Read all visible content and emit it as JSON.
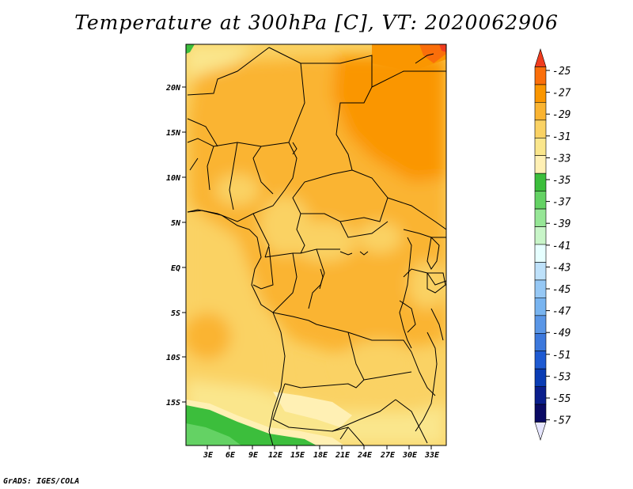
{
  "title": "Temperature at 300hPa [C], VT: 2020062906",
  "credit": "GrADS: IGES/COLA",
  "map": {
    "lat_labels": [
      "20N",
      "15N",
      "10N",
      "5N",
      "EQ",
      "5S",
      "10S",
      "15S"
    ],
    "lon_labels": [
      "3E",
      "6E",
      "9E",
      "12E",
      "15E",
      "18E",
      "21E",
      "24E",
      "27E",
      "30E",
      "33E"
    ],
    "field": "Temperature",
    "level": "300hPa",
    "units": "C"
  },
  "colorbar": {
    "labels": [
      "-25",
      "-27",
      "-29",
      "-31",
      "-33",
      "-35",
      "-37",
      "-39",
      "-41",
      "-43",
      "-45",
      "-47",
      "-49",
      "-51",
      "-53",
      "-55",
      "-57"
    ],
    "colors": [
      "#f03c1e",
      "#fa6e0a",
      "#fa9600",
      "#fab432",
      "#fad264",
      "#fae68c",
      "#fff0b4",
      "#3cbe3c",
      "#64d264",
      "#96e696",
      "#c8f5c8",
      "#e6ffff",
      "#bee1fa",
      "#96c8f5",
      "#78b4f0",
      "#5a96e6",
      "#3c78dc",
      "#1e5ad2",
      "#0a3cb4",
      "#0a1e8c",
      "#0a0a64",
      "#e6e6ff"
    ]
  }
}
